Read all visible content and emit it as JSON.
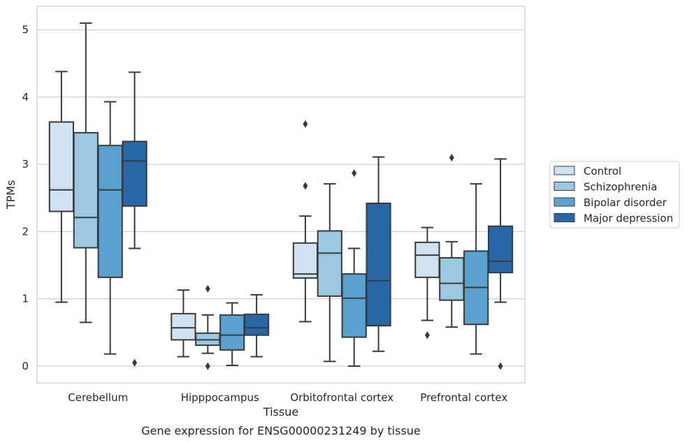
{
  "chart_data": {
    "type": "box",
    "xlabel": "Tissue",
    "ylabel": "TPMs",
    "caption": "Gene expression for ENSG00000231249 by tissue",
    "ylim": [
      -0.25,
      5.35
    ],
    "yticks": [
      0,
      1,
      2,
      3,
      4,
      5
    ],
    "grid": true,
    "legend_position": "right",
    "categories": [
      "Cerebellum",
      "Hipppocampus",
      "Orbitofrontal cortex",
      "Prefrontal cortex"
    ],
    "series": [
      {
        "name": "Control",
        "color": "#d0e1f2",
        "boxes": [
          {
            "whisker_low": 0.95,
            "q1": 2.3,
            "median": 2.62,
            "q3": 3.63,
            "whisker_high": 4.38,
            "outliers": []
          },
          {
            "whisker_low": 0.14,
            "q1": 0.39,
            "median": 0.57,
            "q3": 0.78,
            "whisker_high": 1.13,
            "outliers": []
          },
          {
            "whisker_low": 0.66,
            "q1": 1.31,
            "median": 1.37,
            "q3": 1.83,
            "whisker_high": 2.23,
            "outliers": [
              2.68,
              3.6
            ]
          },
          {
            "whisker_low": 0.68,
            "q1": 1.32,
            "median": 1.65,
            "q3": 1.84,
            "whisker_high": 2.06,
            "outliers": [
              0.46
            ]
          }
        ]
      },
      {
        "name": "Schizophrenia",
        "color": "#9ac8e0",
        "boxes": [
          {
            "whisker_low": 0.65,
            "q1": 1.76,
            "median": 2.21,
            "q3": 3.47,
            "whisker_high": 5.1,
            "outliers": []
          },
          {
            "whisker_low": 0.19,
            "q1": 0.31,
            "median": 0.39,
            "q3": 0.49,
            "whisker_high": 0.76,
            "outliers": [
              0.0,
              1.15
            ]
          },
          {
            "whisker_low": 0.07,
            "q1": 1.04,
            "median": 1.68,
            "q3": 2.01,
            "whisker_high": 2.71,
            "outliers": []
          },
          {
            "whisker_low": 0.58,
            "q1": 0.98,
            "median": 1.23,
            "q3": 1.61,
            "whisker_high": 1.85,
            "outliers": [
              3.1
            ]
          }
        ]
      },
      {
        "name": "Bipolar disorder",
        "color": "#5aa1cf",
        "boxes": [
          {
            "whisker_low": 0.18,
            "q1": 1.32,
            "median": 2.62,
            "q3": 3.28,
            "whisker_high": 3.93,
            "outliers": []
          },
          {
            "whisker_low": 0.01,
            "q1": 0.24,
            "median": 0.46,
            "q3": 0.76,
            "whisker_high": 0.94,
            "outliers": []
          },
          {
            "whisker_low": 0.0,
            "q1": 0.43,
            "median": 1.01,
            "q3": 1.37,
            "whisker_high": 1.75,
            "outliers": [
              2.87
            ]
          },
          {
            "whisker_low": 0.18,
            "q1": 0.62,
            "median": 1.17,
            "q3": 1.71,
            "whisker_high": 2.71,
            "outliers": []
          }
        ]
      },
      {
        "name": "Major depression",
        "color": "#2767a8",
        "boxes": [
          {
            "whisker_low": 1.75,
            "q1": 2.38,
            "median": 3.05,
            "q3": 3.34,
            "whisker_high": 4.37,
            "outliers": [
              0.05
            ]
          },
          {
            "whisker_low": 0.14,
            "q1": 0.46,
            "median": 0.57,
            "q3": 0.77,
            "whisker_high": 1.06,
            "outliers": []
          },
          {
            "whisker_low": 0.22,
            "q1": 0.6,
            "median": 1.27,
            "q3": 2.42,
            "whisker_high": 3.11,
            "outliers": []
          },
          {
            "whisker_low": 0.95,
            "q1": 1.39,
            "median": 1.56,
            "q3": 2.08,
            "whisker_high": 3.08,
            "outliers": [
              0.0
            ]
          }
        ]
      }
    ]
  }
}
